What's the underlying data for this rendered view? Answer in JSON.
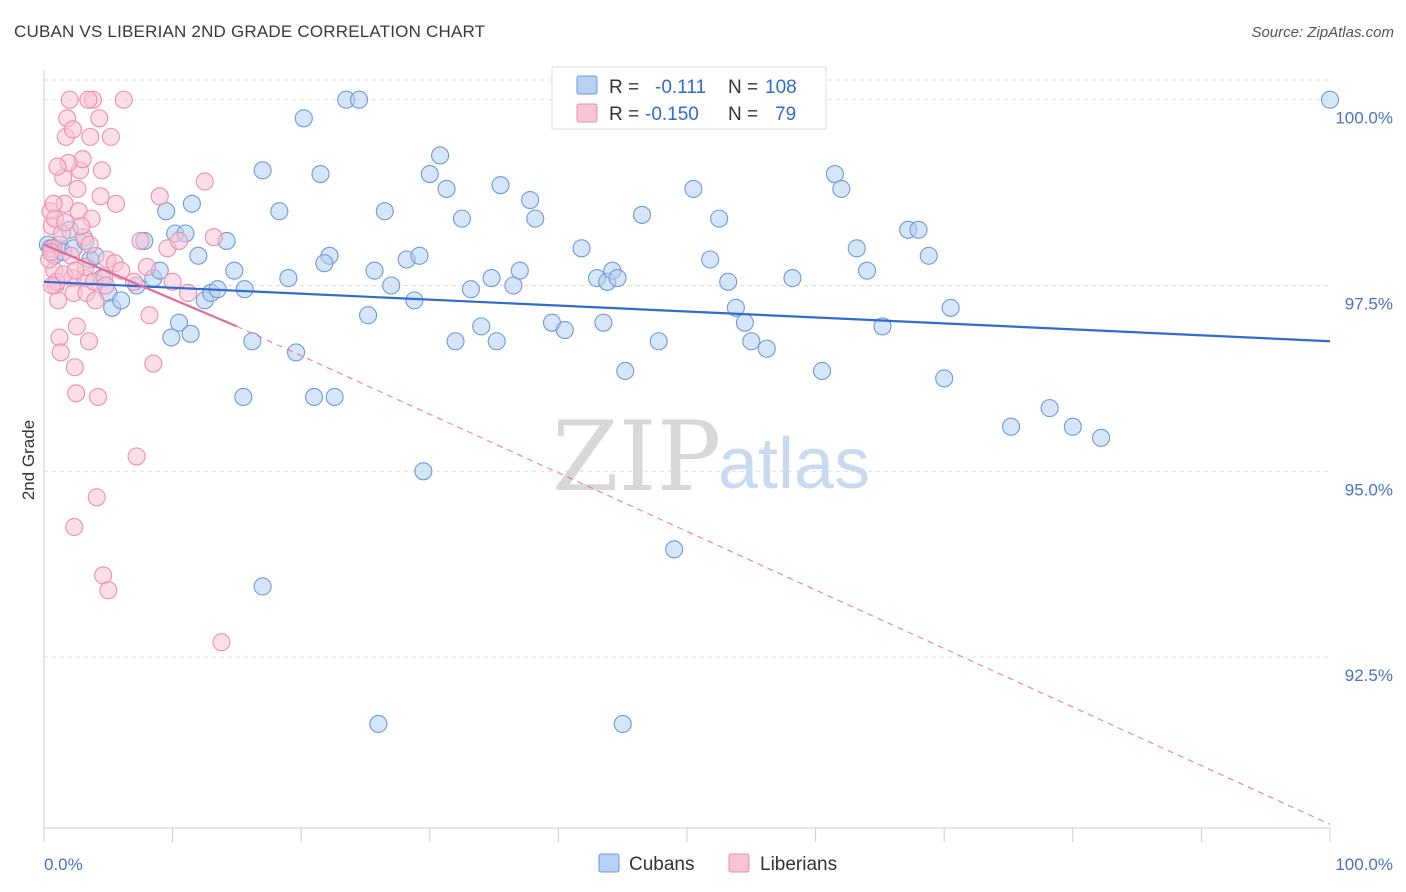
{
  "title": "CUBAN VS LIBERIAN 2ND GRADE CORRELATION CHART",
  "source": "Source: ZipAtlas.com",
  "watermark": {
    "zip": "ZIP",
    "atlas": "atlas"
  },
  "colors": {
    "cubans_fill": "#b7d0f3",
    "cubans_stroke": "#6e9ad8",
    "cubans_line": "#2f6bd0",
    "liberians_fill": "#f8c3d4",
    "liberians_stroke": "#ea8fae",
    "liberians_line": "#e26a95",
    "grid": "#dddddd",
    "tick_text": "#4a72c0"
  },
  "legend": {
    "row1": {
      "r_label": "R =",
      "r_value": "-0.111",
      "n_label": "N =",
      "n_value": "108"
    },
    "row2": {
      "r_label": "R =",
      "r_value": "-0.150",
      "n_label": "N =",
      "n_value": "79"
    }
  },
  "chart_data": {
    "type": "scatter",
    "xlabel": "",
    "ylabel": "2nd Grade",
    "xlim": [
      0,
      100
    ],
    "ylim": [
      90.2,
      100.4
    ],
    "x_tick_labels": [
      {
        "value": 0,
        "label": "0.0%"
      },
      {
        "value": 100,
        "label": "100.0%"
      }
    ],
    "y_ticks": [
      {
        "value": 100,
        "label": "100.0%"
      },
      {
        "value": 97.5,
        "label": "97.5%"
      },
      {
        "value": 95,
        "label": "95.0%"
      },
      {
        "value": 92.5,
        "label": "92.5%"
      }
    ],
    "grid": true,
    "legend_position": "top-center",
    "series": [
      {
        "name": "Cubans",
        "trend": {
          "x": [
            0,
            100
          ],
          "y": [
            97.55,
            96.75
          ],
          "style": "solid"
        },
        "points": [
          [
            0.3,
            98.05
          ],
          [
            0.5,
            98.0
          ],
          [
            0.8,
            97.9
          ],
          [
            1.2,
            98.05
          ],
          [
            1.5,
            97.95
          ],
          [
            2.0,
            98.25
          ],
          [
            2.3,
            98.0
          ],
          [
            3.2,
            98.1
          ],
          [
            3.6,
            97.85
          ],
          [
            4.0,
            97.9
          ],
          [
            4.5,
            97.6
          ],
          [
            5.0,
            97.4
          ],
          [
            5.3,
            97.2
          ],
          [
            6.0,
            97.3
          ],
          [
            7.2,
            97.5
          ],
          [
            7.8,
            98.1
          ],
          [
            8.5,
            97.6
          ],
          [
            9.0,
            97.7
          ],
          [
            9.5,
            98.5
          ],
          [
            10.2,
            98.2
          ],
          [
            11.0,
            98.2
          ],
          [
            11.5,
            98.6
          ],
          [
            12.0,
            97.9
          ],
          [
            12.5,
            97.3
          ],
          [
            13.0,
            97.4
          ],
          [
            13.5,
            97.45
          ],
          [
            14.2,
            98.1
          ],
          [
            14.8,
            97.7
          ],
          [
            15.5,
            96.0
          ],
          [
            16.2,
            96.75
          ],
          [
            17.0,
            99.05
          ],
          [
            18.3,
            98.5
          ],
          [
            19.0,
            97.6
          ],
          [
            19.6,
            96.6
          ],
          [
            20.2,
            99.75
          ],
          [
            21.0,
            96.0
          ],
          [
            21.5,
            99.0
          ],
          [
            22.2,
            97.9
          ],
          [
            22.6,
            96.0
          ],
          [
            23.5,
            100.0
          ],
          [
            24.5,
            100.0
          ],
          [
            25.2,
            97.1
          ],
          [
            25.7,
            97.7
          ],
          [
            26.5,
            98.5
          ],
          [
            27.0,
            97.5
          ],
          [
            28.2,
            97.85
          ],
          [
            28.8,
            97.3
          ],
          [
            29.5,
            95.0
          ],
          [
            30.0,
            99.0
          ],
          [
            30.8,
            99.25
          ],
          [
            31.3,
            98.8
          ],
          [
            32.0,
            96.75
          ],
          [
            32.5,
            98.4
          ],
          [
            33.2,
            97.45
          ],
          [
            34.0,
            96.95
          ],
          [
            34.8,
            97.6
          ],
          [
            35.2,
            96.75
          ],
          [
            35.5,
            98.85
          ],
          [
            36.5,
            97.5
          ],
          [
            37.0,
            97.7
          ],
          [
            37.8,
            98.65
          ],
          [
            38.2,
            98.4
          ],
          [
            39.5,
            97.0
          ],
          [
            40.5,
            96.9
          ],
          [
            41.8,
            98.0
          ],
          [
            43.0,
            97.6
          ],
          [
            43.5,
            97.0
          ],
          [
            43.8,
            97.55
          ],
          [
            44.2,
            97.7
          ],
          [
            44.6,
            97.6
          ],
          [
            45.2,
            96.35
          ],
          [
            46.5,
            98.45
          ],
          [
            47.8,
            96.75
          ],
          [
            49.0,
            93.95
          ],
          [
            50.5,
            98.8
          ],
          [
            51.8,
            97.85
          ],
          [
            52.5,
            98.4
          ],
          [
            53.2,
            97.55
          ],
          [
            53.8,
            97.2
          ],
          [
            54.5,
            97.0
          ],
          [
            55.0,
            96.75
          ],
          [
            56.2,
            96.65
          ],
          [
            58.2,
            97.6
          ],
          [
            60.5,
            96.35
          ],
          [
            61.5,
            99.0
          ],
          [
            62.0,
            98.8
          ],
          [
            63.2,
            98.0
          ],
          [
            64.0,
            97.7
          ],
          [
            65.2,
            96.95
          ],
          [
            67.2,
            98.25
          ],
          [
            68.0,
            98.25
          ],
          [
            68.8,
            97.9
          ],
          [
            70.0,
            96.25
          ],
          [
            70.5,
            97.2
          ],
          [
            75.2,
            95.6
          ],
          [
            78.2,
            95.85
          ],
          [
            80.0,
            95.6
          ],
          [
            82.2,
            95.45
          ],
          [
            100.0,
            100.0
          ],
          [
            26.0,
            91.6
          ],
          [
            45.0,
            91.6
          ],
          [
            17.0,
            93.45
          ],
          [
            10.5,
            97.0
          ],
          [
            11.4,
            96.85
          ],
          [
            15.6,
            97.45
          ],
          [
            21.8,
            97.8
          ],
          [
            29.2,
            97.9
          ],
          [
            9.9,
            96.8
          ]
        ]
      },
      {
        "name": "Liberians",
        "trend": {
          "x": [
            0,
            15
          ],
          "y": [
            98.05,
            96.95
          ],
          "style": "solid",
          "extended": {
            "x": [
              15,
              100
            ],
            "y": [
              96.95,
              90.25
            ],
            "style": "dashed"
          }
        },
        "points": [
          [
            0.5,
            98.5
          ],
          [
            0.6,
            98.3
          ],
          [
            0.7,
            98.0
          ],
          [
            0.8,
            97.7
          ],
          [
            0.9,
            97.5
          ],
          [
            1.0,
            97.55
          ],
          [
            1.1,
            97.3
          ],
          [
            1.2,
            96.8
          ],
          [
            1.3,
            96.6
          ],
          [
            1.5,
            98.95
          ],
          [
            1.6,
            98.6
          ],
          [
            1.7,
            99.5
          ],
          [
            1.8,
            99.75
          ],
          [
            2.0,
            100.0
          ],
          [
            2.1,
            97.9
          ],
          [
            2.2,
            97.6
          ],
          [
            2.3,
            97.4
          ],
          [
            2.4,
            96.4
          ],
          [
            2.5,
            96.05
          ],
          [
            2.6,
            98.8
          ],
          [
            2.7,
            98.5
          ],
          [
            2.8,
            99.05
          ],
          [
            3.0,
            99.2
          ],
          [
            3.1,
            98.15
          ],
          [
            3.2,
            97.6
          ],
          [
            3.3,
            97.4
          ],
          [
            3.5,
            96.75
          ],
          [
            3.6,
            99.5
          ],
          [
            3.7,
            98.4
          ],
          [
            3.8,
            100.0
          ],
          [
            3.9,
            97.55
          ],
          [
            4.0,
            97.3
          ],
          [
            4.2,
            96.0
          ],
          [
            4.3,
            99.75
          ],
          [
            4.4,
            98.7
          ],
          [
            4.5,
            99.05
          ],
          [
            4.7,
            97.6
          ],
          [
            4.9,
            97.85
          ],
          [
            5.2,
            99.5
          ],
          [
            5.5,
            97.8
          ],
          [
            5.6,
            98.6
          ],
          [
            6.2,
            100.0
          ],
          [
            7.0,
            97.55
          ],
          [
            7.5,
            98.1
          ],
          [
            8.0,
            97.75
          ],
          [
            8.2,
            97.1
          ],
          [
            8.5,
            96.45
          ],
          [
            9.0,
            98.7
          ],
          [
            9.6,
            98.0
          ],
          [
            10.0,
            97.55
          ],
          [
            10.5,
            98.1
          ],
          [
            11.2,
            97.4
          ],
          [
            12.5,
            98.9
          ],
          [
            13.2,
            98.15
          ],
          [
            13.8,
            92.7
          ],
          [
            0.4,
            97.85
          ],
          [
            0.55,
            97.95
          ],
          [
            0.65,
            97.5
          ],
          [
            0.75,
            98.6
          ],
          [
            1.4,
            98.2
          ],
          [
            1.55,
            97.65
          ],
          [
            1.9,
            99.15
          ],
          [
            2.25,
            99.6
          ],
          [
            2.55,
            96.95
          ],
          [
            2.9,
            98.3
          ],
          [
            3.45,
            100.0
          ],
          [
            4.1,
            94.65
          ],
          [
            4.6,
            93.6
          ],
          [
            5.0,
            93.4
          ],
          [
            7.2,
            95.2
          ],
          [
            2.35,
            94.25
          ],
          [
            3.25,
            97.75
          ],
          [
            0.85,
            98.4
          ],
          [
            1.05,
            99.1
          ],
          [
            1.65,
            98.35
          ],
          [
            2.45,
            97.7
          ],
          [
            3.55,
            98.05
          ],
          [
            4.8,
            97.5
          ],
          [
            6.0,
            97.7
          ]
        ]
      }
    ]
  }
}
